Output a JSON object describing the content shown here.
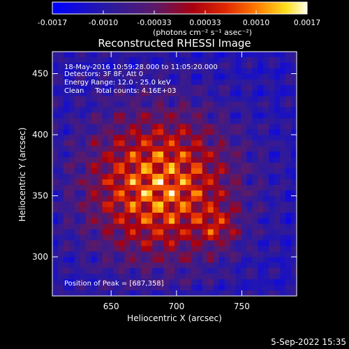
{
  "colorbar": {
    "ticks": [
      "-0.0017",
      "-0.0010",
      "-0.00033",
      "0.00033",
      "0.0010",
      "0.0017"
    ],
    "unit_label": "(photons cm⁻² s⁻¹ asec⁻²)",
    "range": [
      -0.0017,
      0.0017
    ]
  },
  "chart_data": {
    "type": "heatmap",
    "title": "Reconstructed RHESSI Image",
    "xlabel": "Heliocentric X (arcsec)",
    "ylabel": "Heliocentric Y (arcsec)",
    "xlim": [
      605,
      792
    ],
    "ylim": [
      268,
      468
    ],
    "xticks": [
      650,
      700,
      750
    ],
    "yticks": [
      300,
      350,
      400,
      450
    ],
    "peak": [
      687,
      358
    ],
    "annotations": [
      "18-May-2016 10:59:28.000 to 11:05:20.000",
      "Detectors: 3F 8F, Att 0",
      "Energy Range: 12.0 - 25.0 keV",
      "Clean     Total counts: 4.16E+03"
    ],
    "peak_label": "Position of Peak = [687,358]"
  },
  "footer": {
    "timestamp": "5-Sep-2022 15:35"
  }
}
